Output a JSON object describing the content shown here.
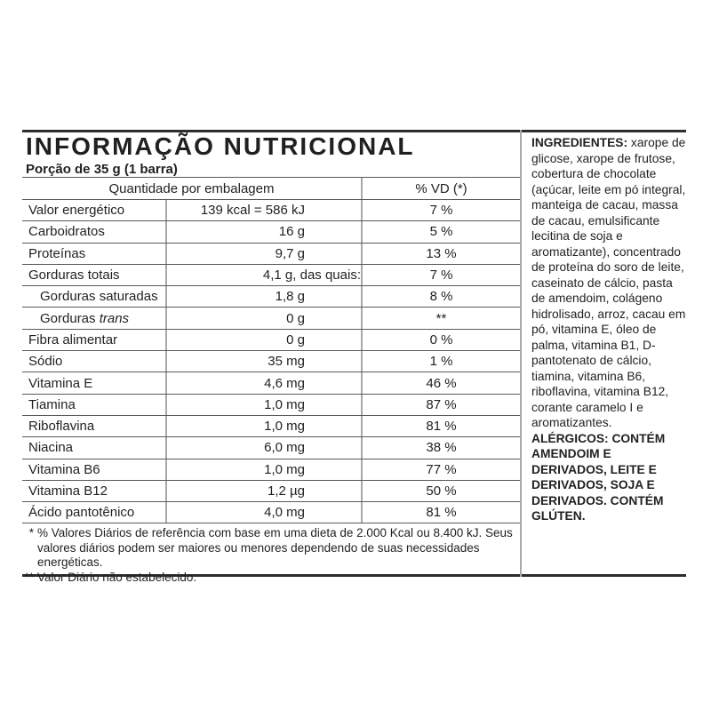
{
  "title": "INFORMAÇÃO NUTRICIONAL",
  "serving": "Porção de 35 g (1 barra)",
  "table": {
    "header": {
      "quantity": "Quantidade por embalagem",
      "dv": "% VD (*)"
    },
    "rows": [
      {
        "label": "Valor energético",
        "label_italic": "",
        "indent": false,
        "amount": "139 kcal = 586 kJ",
        "suffix": "",
        "dv": "7 %"
      },
      {
        "label": "Carboidratos",
        "label_italic": "",
        "indent": false,
        "amount": "16 g",
        "suffix": "",
        "dv": "5 %"
      },
      {
        "label": "Proteínas",
        "label_italic": "",
        "indent": false,
        "amount": "9,7 g",
        "suffix": "",
        "dv": "13 %"
      },
      {
        "label": "Gorduras totais",
        "label_italic": "",
        "indent": false,
        "amount": "4,1 g",
        "suffix": ", das quais:",
        "dv": "7 %"
      },
      {
        "label": "Gorduras saturadas",
        "label_italic": "",
        "indent": true,
        "amount": "1,8 g",
        "suffix": "",
        "dv": "8 %"
      },
      {
        "label": "Gorduras ",
        "label_italic": "trans",
        "indent": true,
        "amount": "0 g",
        "suffix": "",
        "dv": "**"
      },
      {
        "label": "Fibra alimentar",
        "label_italic": "",
        "indent": false,
        "amount": "0 g",
        "suffix": "",
        "dv": "0 %"
      },
      {
        "label": "Sódio",
        "label_italic": "",
        "indent": false,
        "amount": "35 mg",
        "suffix": "",
        "dv": "1 %"
      },
      {
        "label": "Vitamina E",
        "label_italic": "",
        "indent": false,
        "amount": "4,6 mg",
        "suffix": "",
        "dv": "46 %"
      },
      {
        "label": "Tiamina",
        "label_italic": "",
        "indent": false,
        "amount": "1,0 mg",
        "suffix": "",
        "dv": "87 %"
      },
      {
        "label": "Riboflavina",
        "label_italic": "",
        "indent": false,
        "amount": "1,0 mg",
        "suffix": "",
        "dv": "81 %"
      },
      {
        "label": "Niacina",
        "label_italic": "",
        "indent": false,
        "amount": "6,0 mg",
        "suffix": "",
        "dv": "38 %"
      },
      {
        "label": "Vitamina B6",
        "label_italic": "",
        "indent": false,
        "amount": "1,0 mg",
        "suffix": "",
        "dv": "77 %"
      },
      {
        "label": "Vitamina B12",
        "label_italic": "",
        "indent": false,
        "amount": "1,2 µg",
        "suffix": "",
        "dv": "50 %"
      },
      {
        "label": "Ácido pantotênico",
        "label_italic": "",
        "indent": false,
        "amount": "4,0 mg",
        "suffix": "",
        "dv": "81 %"
      }
    ]
  },
  "footnotes": [
    {
      "marker": "*",
      "text": "% Valores Diários de referência com base em uma dieta de 2.000 Kcal ou 8.400 kJ. Seus valores diários podem ser maiores ou menores dependendo de suas necessidades energéticas."
    },
    {
      "marker": "**",
      "text": "Valor Diário não estabelecido."
    }
  ],
  "ingredients": {
    "label": "INGREDIENTES:",
    "text": " xarope de glicose, xarope de frutose, cobertura de chocolate (açúcar, leite em pó integral, manteiga de cacau, massa de cacau, emulsificante lecitina de soja e aromatizante), concentrado de proteína do soro de leite, caseinato de cálcio, pasta de amendoim, colágeno hidrolisado, arroz, cacau em pó, vitamina E, óleo de palma, vitamina B1, D-pantotenato de cálcio, tiamina, vitamina B6, riboflavina, vitamina B12, corante caramelo I e aromatizantes. ",
    "allergens": "ALÉRGICOS: CONTÉM AMENDOIM E DERIVADOS, LEITE E DERIVADOS, SOJA E DERIVADOS. CONTÉM GLÚTEN."
  },
  "colors": {
    "background": "#ffffff",
    "text": "#231f20",
    "border_heavy": "#2d2d2d",
    "border_row": "#58595b",
    "border_col": "#a7a9ac"
  }
}
